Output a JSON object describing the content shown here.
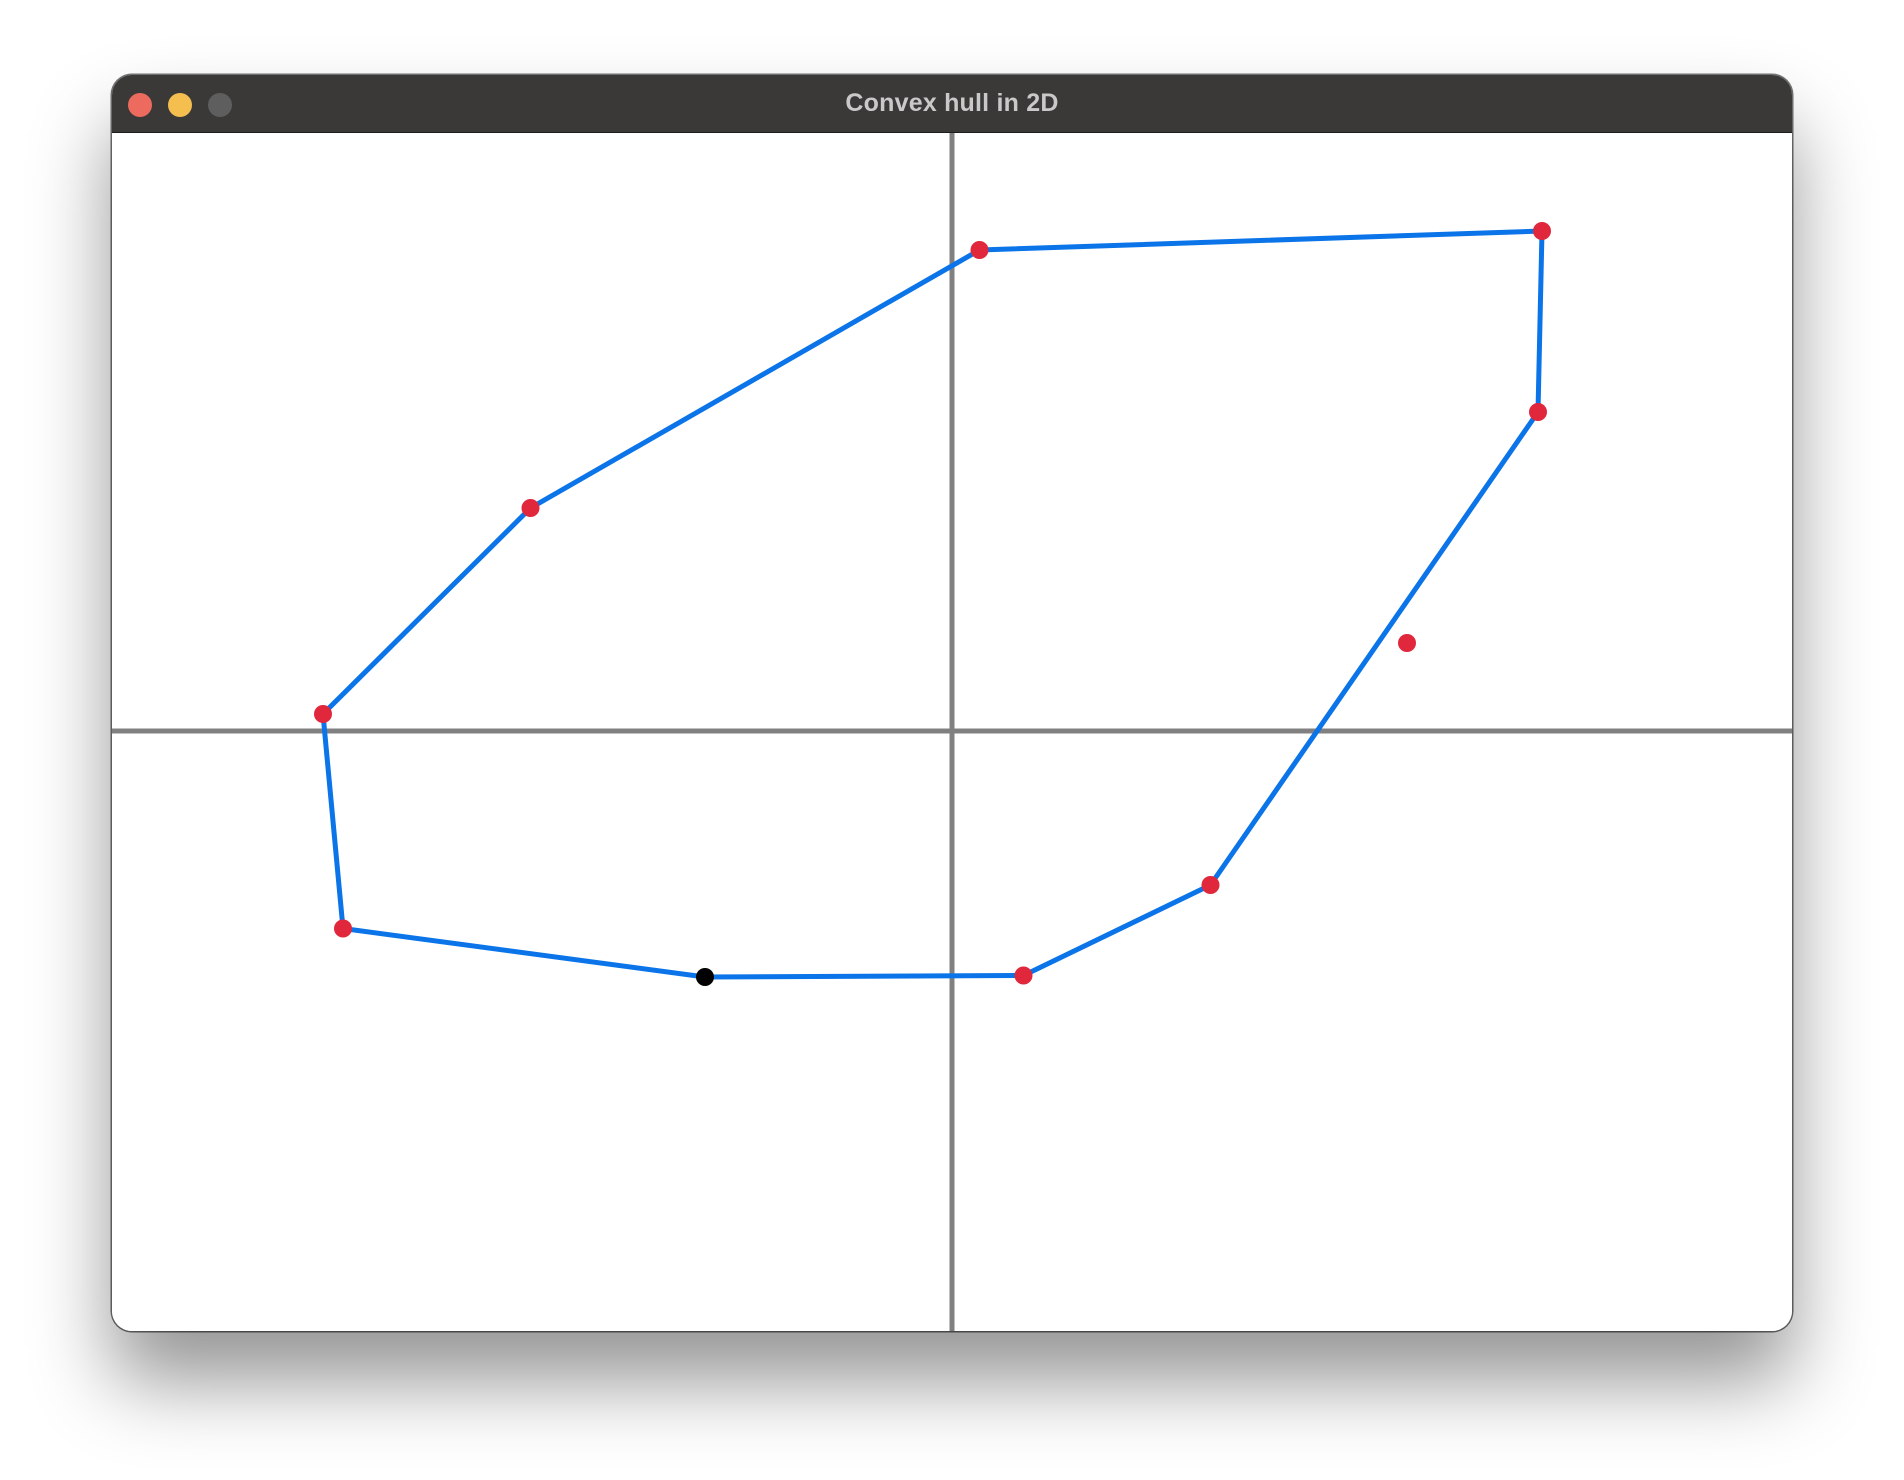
{
  "window": {
    "title": "Convex hull in 2D",
    "buttons": [
      {
        "name": "close",
        "color": "#ec6a5e"
      },
      {
        "name": "minimize",
        "color": "#f4bf4f"
      },
      {
        "name": "zoom",
        "color": "#5e5e5e"
      }
    ]
  },
  "colors": {
    "axis": "#808080",
    "hull_edge": "#0a74e8",
    "point": "#e0273c",
    "start_point": "#000000",
    "background": "#ffffff"
  },
  "chart_data": {
    "type": "scatter",
    "axes": {
      "show": true,
      "origin": [
        0,
        0
      ]
    },
    "points": [
      {
        "x": 0.055,
        "y": 0.962,
        "role": "hull"
      },
      {
        "x": 1.18,
        "y": 1.0,
        "role": "hull"
      },
      {
        "x": 1.172,
        "y": 0.638,
        "role": "hull"
      },
      {
        "x": 0.91,
        "y": 0.176,
        "role": "interior"
      },
      {
        "x": 0.517,
        "y": -0.308,
        "role": "hull"
      },
      {
        "x": 0.143,
        "y": -0.489,
        "role": "hull"
      },
      {
        "x": -0.494,
        "y": -0.492,
        "role": "start"
      },
      {
        "x": -1.218,
        "y": -0.395,
        "role": "hull"
      },
      {
        "x": -1.258,
        "y": 0.034,
        "role": "hull"
      },
      {
        "x": -0.843,
        "y": 0.446,
        "role": "hull"
      }
    ],
    "hull_order": [
      6,
      5,
      4,
      2,
      1,
      0,
      9,
      8,
      7,
      6
    ]
  }
}
